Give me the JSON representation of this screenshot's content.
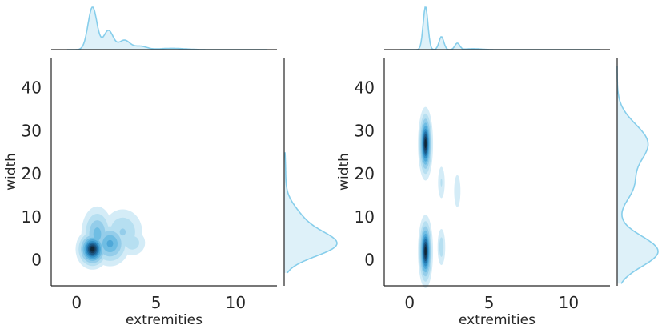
{
  "chart_data": [
    {
      "type": "kde-joint",
      "title": "",
      "xlabel": "extremities",
      "ylabel": "width",
      "xlim": [
        -1.6,
        12.6
      ],
      "ylim": [
        -6,
        47
      ],
      "xticks": [
        0,
        5,
        10
      ],
      "yticks": [
        0,
        10,
        20,
        30,
        40
      ],
      "grid": false,
      "color": "#87ceeb",
      "density_centers": [
        {
          "x": 1.0,
          "y": 2.5,
          "sx": 0.45,
          "sy": 2.0,
          "w": 1.0
        },
        {
          "x": 1.3,
          "y": 6.0,
          "sx": 0.5,
          "sy": 3.2,
          "w": 0.45
        },
        {
          "x": 2.1,
          "y": 3.8,
          "sx": 0.6,
          "sy": 2.5,
          "w": 0.55
        },
        {
          "x": 2.9,
          "y": 6.5,
          "sx": 0.7,
          "sy": 3.0,
          "w": 0.28
        },
        {
          "x": 3.5,
          "y": 4.0,
          "sx": 0.5,
          "sy": 1.8,
          "w": 0.22
        }
      ],
      "x_marginal_peaks": [
        {
          "x": 1.0,
          "s": 0.28,
          "w": 1.0
        },
        {
          "x": 2.0,
          "s": 0.3,
          "w": 0.45
        },
        {
          "x": 3.0,
          "s": 0.35,
          "w": 0.22
        },
        {
          "x": 4.0,
          "s": 0.4,
          "w": 0.08
        },
        {
          "x": 6.0,
          "s": 0.8,
          "w": 0.03
        }
      ],
      "y_marginal_peaks": [
        {
          "y": 3.5,
          "s": 2.8,
          "w": 1.0
        },
        {
          "y": 9.0,
          "s": 3.5,
          "w": 0.35
        },
        {
          "y": 20.0,
          "s": 5.0,
          "w": 0.03
        }
      ]
    },
    {
      "type": "kde-joint",
      "title": "",
      "xlabel": "extremities",
      "ylabel": "width",
      "xlim": [
        -1.6,
        12.6
      ],
      "ylim": [
        -6,
        47
      ],
      "xticks": [
        0,
        5,
        10
      ],
      "yticks": [
        0,
        10,
        20,
        30,
        40
      ],
      "grid": false,
      "color": "#87ceeb",
      "density_centers": [
        {
          "x": 1.0,
          "y": 27.0,
          "sx": 0.2,
          "sy": 3.6,
          "w": 1.0
        },
        {
          "x": 1.0,
          "y": 2.0,
          "sx": 0.2,
          "sy": 3.6,
          "w": 1.0
        },
        {
          "x": 2.0,
          "y": 18.0,
          "sx": 0.15,
          "sy": 2.6,
          "w": 0.16
        },
        {
          "x": 2.0,
          "y": 3.0,
          "sx": 0.15,
          "sy": 2.6,
          "w": 0.22
        },
        {
          "x": 3.0,
          "y": 16.0,
          "sx": 0.16,
          "sy": 3.0,
          "w": 0.13
        }
      ],
      "x_marginal_peaks": [
        {
          "x": 1.0,
          "s": 0.15,
          "w": 1.0
        },
        {
          "x": 2.0,
          "s": 0.15,
          "w": 0.3
        },
        {
          "x": 3.0,
          "s": 0.15,
          "w": 0.15
        },
        {
          "x": 4.0,
          "s": 0.5,
          "w": 0.02
        }
      ],
      "y_marginal_peaks": [
        {
          "y": 2.0,
          "s": 3.5,
          "w": 1.0
        },
        {
          "y": 27.0,
          "s": 4.5,
          "w": 0.75
        },
        {
          "y": 17.0,
          "s": 3.5,
          "w": 0.35
        }
      ]
    }
  ]
}
